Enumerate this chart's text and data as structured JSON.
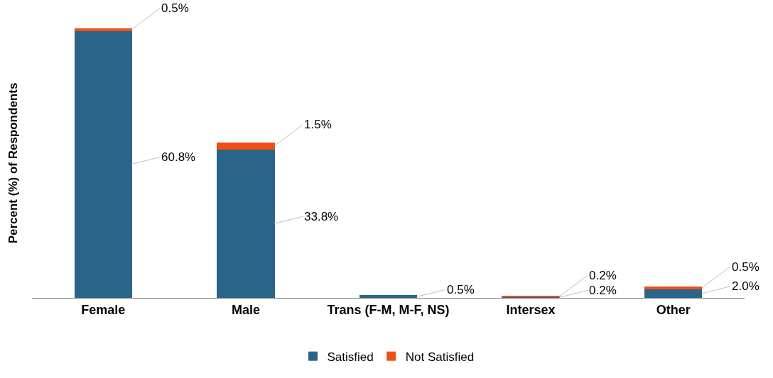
{
  "chart_data": {
    "type": "bar",
    "stacked": true,
    "ylabel": "Percent (%) of Respondents",
    "categories": [
      "Female",
      "Male",
      "Trans (F-M, M-F, NS)",
      "Intersex",
      "Other"
    ],
    "series": [
      {
        "name": "Satisfied",
        "color": "#2a6589",
        "values": [
          60.8,
          33.8,
          0.5,
          0.2,
          2.0
        ],
        "value_labels": [
          "60.8%",
          "33.8%",
          "0.5%",
          "0.2%",
          "2.0%"
        ]
      },
      {
        "name": "Not Satisfied",
        "color": "#f04e14",
        "values": [
          0.5,
          1.5,
          null,
          0.2,
          0.5
        ],
        "value_labels": [
          "0.5%",
          "1.5%",
          null,
          "0.2%",
          "0.5%"
        ]
      }
    ],
    "ylim": [
      0,
      61.3
    ],
    "tick_labels": "x",
    "legend": "bottom"
  }
}
